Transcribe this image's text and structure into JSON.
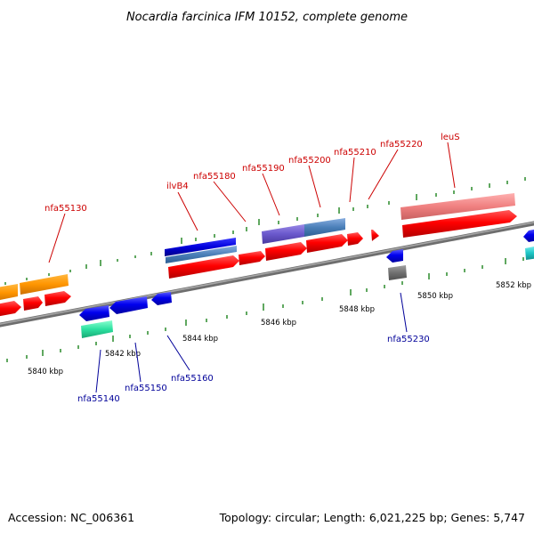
{
  "title": "Nocardia farcinica IFM 10152, complete genome",
  "footer": {
    "accession": "Accession: NC_006361",
    "summary": "Topology: circular; Length: 6,021,225 bp; Genes: 5,747"
  },
  "axis": {
    "ticks": [
      "5840 kbp",
      "5842 kbp",
      "5844 kbp",
      "5846 kbp",
      "5848 kbp",
      "5850 kbp",
      "5852 kbp"
    ]
  },
  "genes_forward": [
    "nfa55130",
    "ilvB4",
    "nfa55180",
    "nfa55190",
    "nfa55200",
    "nfa55210",
    "nfa55220",
    "leuS"
  ],
  "genes_reverse": [
    "nfa55140",
    "nfa55150",
    "nfa55160",
    "nfa55230"
  ],
  "colors": {
    "cds_forward": "#ff0000",
    "cds_reverse": "#0000ff",
    "backbone": "#808080",
    "tick_mark": "#2a8a2a",
    "label_forward": "#cc0000",
    "label_reverse": "#000099"
  }
}
